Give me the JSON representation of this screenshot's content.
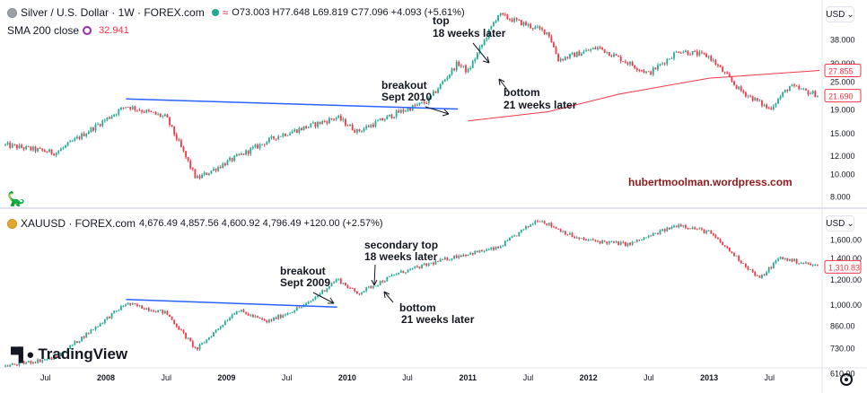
{
  "top_header": {
    "symbol": "Silver / U.S. Dollar · 1W · FOREX.com",
    "ohlc": "O73.003 H77.648 L69.819 C77.096 +4.093 (+5.61%)",
    "sma_label": "SMA 200 close",
    "sma_value": "32.941"
  },
  "bottom_header": {
    "symbol": "XAUUSD · FOREX.com",
    "ohlc": "4,676.49 4,857.56 4,600.92 4,796.49 +120.00 (+2.57%)"
  },
  "currency_button": "USD",
  "logo_text": "TradingView",
  "watermark": "hubertmoolman.wordpress.com",
  "colors": {
    "up": "#22ab94",
    "down": "#f23645",
    "trend": "#2962ff",
    "sma": "#f23645",
    "watermark": "#8b1a1a"
  },
  "chart_data": [
    {
      "type": "candlestick",
      "series": [
        {
          "name": "Silver / U.S. Dollar",
          "values_ref": "weekly closes"
        },
        {
          "name": "SMA 200 close",
          "values_ref": "sma"
        }
      ],
      "y_scale": "log",
      "ylim": [
        7.5,
        55
      ],
      "yticks": [
        "38.000",
        "30.000",
        "25.000",
        "19.000",
        "15.000",
        "12.000",
        "10.000",
        "8.000"
      ],
      "price_labels": [
        "27.855",
        "21.690"
      ],
      "x_range": [
        "2007-03",
        "2013-12"
      ],
      "key_points": [
        [
          "2007-03",
          13.3
        ],
        [
          "2007-08",
          12.3
        ],
        [
          "2008-03",
          19.6
        ],
        [
          "2008-07",
          17.5
        ],
        [
          "2008-10",
          9.5
        ],
        [
          "2009-01",
          11.2
        ],
        [
          "2009-06",
          14.5
        ],
        [
          "2009-12",
          17.5
        ],
        [
          "2010-02",
          15.2
        ],
        [
          "2010-06",
          18.3
        ],
        [
          "2010-09",
          20.5
        ],
        [
          "2010-12",
          30.0
        ],
        [
          "2011-01",
          27.5
        ],
        [
          "2011-04",
          48.5
        ],
        [
          "2011-09",
          40.5
        ],
        [
          "2011-10",
          31.0
        ],
        [
          "2012-02",
          35.0
        ],
        [
          "2012-07",
          27.0
        ],
        [
          "2012-10",
          34.0
        ],
        [
          "2013-01",
          32.0
        ],
        [
          "2013-04",
          23.0
        ],
        [
          "2013-07",
          19.0
        ],
        [
          "2013-09",
          23.8
        ],
        [
          "2013-12",
          21.7
        ]
      ],
      "trendline": [
        [
          "2008-03",
          21.0
        ],
        [
          "2010-12",
          19.0
        ]
      ],
      "sma": [
        [
          "2011-01",
          16.9
        ],
        [
          "2011-09",
          18.5
        ],
        [
          "2012-04",
          22.0
        ],
        [
          "2013-01",
          25.8
        ],
        [
          "2013-12",
          27.855
        ]
      ],
      "annotations": [
        {
          "text": [
            "top",
            "18 weeks later"
          ],
          "x": "2010-12"
        },
        {
          "text": [
            "breakout",
            "Sept 2010"
          ],
          "x": "2010-09"
        },
        {
          "text": [
            "bottom",
            "21 weeks later"
          ],
          "x": "2011-01"
        }
      ]
    },
    {
      "type": "candlestick",
      "series": [
        {
          "name": "XAUUSD",
          "values_ref": "weekly closes"
        }
      ],
      "y_scale": "log",
      "ylim": [
        600,
        1950
      ],
      "yticks": [
        "1,600.00",
        "1,400.00",
        "1,200.00",
        "1,000.00",
        "860.00",
        "730.00",
        "610.00"
      ],
      "price_labels": [
        "1,310.83"
      ],
      "x_range": [
        "2007-03",
        "2013-12"
      ],
      "xticks": [
        "Jul",
        "2008",
        "Jul",
        "2009",
        "Jul",
        "2010",
        "Jul",
        "2011",
        "Jul",
        "2012",
        "Jul",
        "2013",
        "Jul"
      ],
      "key_points": [
        [
          "2007-03",
          640
        ],
        [
          "2007-08",
          680
        ],
        [
          "2008-03",
          1005
        ],
        [
          "2008-07",
          940
        ],
        [
          "2008-10",
          720
        ],
        [
          "2009-02",
          960
        ],
        [
          "2009-05",
          880
        ],
        [
          "2009-09",
          1000
        ],
        [
          "2009-12",
          1200
        ],
        [
          "2010-02",
          1080
        ],
        [
          "2010-06",
          1250
        ],
        [
          "2010-12",
          1420
        ],
        [
          "2011-04",
          1500
        ],
        [
          "2011-08",
          1850
        ],
        [
          "2011-12",
          1600
        ],
        [
          "2012-05",
          1540
        ],
        [
          "2012-10",
          1780
        ],
        [
          "2013-01",
          1680
        ],
        [
          "2013-04",
          1380
        ],
        [
          "2013-06",
          1200
        ],
        [
          "2013-08",
          1400
        ],
        [
          "2013-12",
          1311
        ]
      ],
      "trendline": [
        [
          "2008-03",
          1035
        ],
        [
          "2009-12",
          980
        ]
      ],
      "annotations": [
        {
          "text": [
            "secondary top",
            "18 weeks later"
          ],
          "x": "2009-12"
        },
        {
          "text": [
            "breakout",
            "Sept 2009"
          ],
          "x": "2009-09"
        },
        {
          "text": [
            "bottom",
            "21 weeks later"
          ],
          "x": "2010-02"
        }
      ]
    }
  ]
}
